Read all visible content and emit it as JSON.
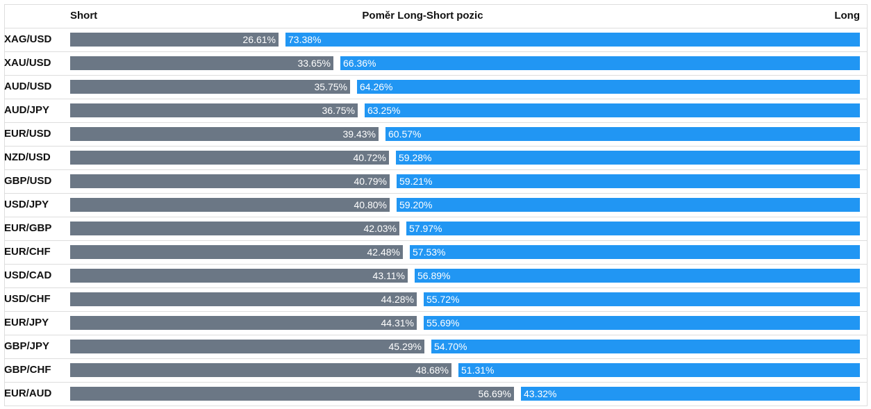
{
  "chart_data": {
    "type": "bar",
    "title": "Poměr Long-Short pozic",
    "left_label": "Short",
    "right_label": "Long",
    "colors": {
      "short": "#6b7785",
      "long": "#2196f3"
    },
    "categories": [
      "XAG/USD",
      "XAU/USD",
      "AUD/USD",
      "AUD/JPY",
      "EUR/USD",
      "NZD/USD",
      "GBP/USD",
      "USD/JPY",
      "EUR/GBP",
      "EUR/CHF",
      "USD/CAD",
      "USD/CHF",
      "EUR/JPY",
      "GBP/JPY",
      "GBP/CHF",
      "EUR/AUD"
    ],
    "series": [
      {
        "name": "Short",
        "values": [
          26.61,
          33.65,
          35.75,
          36.75,
          39.43,
          40.72,
          40.79,
          40.8,
          42.03,
          42.48,
          43.11,
          44.28,
          44.31,
          45.29,
          48.68,
          56.69
        ]
      },
      {
        "name": "Long",
        "values": [
          73.38,
          66.36,
          64.26,
          63.25,
          60.57,
          59.28,
          59.21,
          59.2,
          57.97,
          57.53,
          56.89,
          55.72,
          55.69,
          54.7,
          51.31,
          43.32
        ]
      }
    ],
    "value_labels": {
      "short": [
        "26.61%",
        "33.65%",
        "35.75%",
        "36.75%",
        "39.43%",
        "40.72%",
        "40.79%",
        "40.80%",
        "42.03%",
        "42.48%",
        "43.11%",
        "44.28%",
        "44.31%",
        "45.29%",
        "48.68%",
        "56.69%"
      ],
      "long": [
        "73.38%",
        "66.36%",
        "64.26%",
        "63.25%",
        "60.57%",
        "59.28%",
        "59.21%",
        "59.20%",
        "57.97%",
        "57.53%",
        "56.89%",
        "55.72%",
        "55.69%",
        "54.70%",
        "51.31%",
        "43.32%"
      ]
    },
    "orientation": "horizontal-stacked",
    "grid": false
  }
}
